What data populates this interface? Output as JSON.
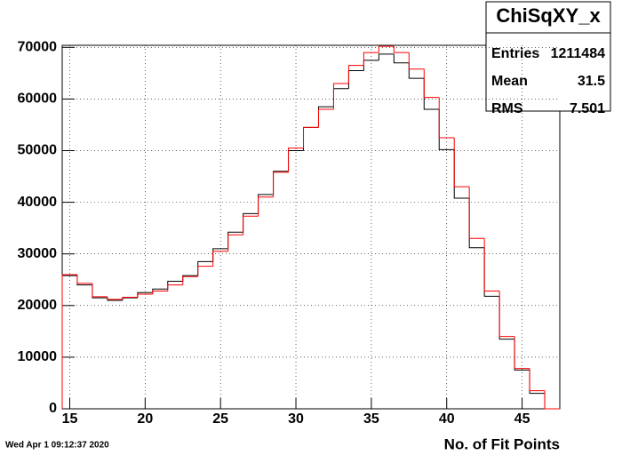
{
  "chart_data": {
    "type": "histogram",
    "title": "ChiSqXY_x",
    "stats": {
      "labels": [
        "Entries",
        "Mean",
        "RMS"
      ],
      "values": [
        "1211484",
        "31.5",
        "7.501"
      ]
    },
    "xlabel": "No. of Fit Points",
    "date": "Wed Apr  1 09:12:37 2020",
    "bins": [
      14.5,
      15.5,
      16.5,
      17.5,
      18.5,
      19.5,
      20.5,
      21.5,
      22.5,
      23.5,
      24.5,
      25.5,
      26.5,
      27.5,
      28.5,
      29.5,
      30.5,
      31.5,
      32.5,
      33.5,
      34.5,
      35.5,
      36.5,
      37.5,
      38.5,
      39.5,
      40.5,
      41.5,
      42.5,
      43.5,
      44.5,
      45.5,
      46.5,
      47.5
    ],
    "series": [
      {
        "color": "#000000",
        "values": [
          25800,
          24000,
          21500,
          21000,
          21500,
          22500,
          23200,
          24700,
          25800,
          28500,
          31000,
          34200,
          37800,
          41500,
          46000,
          50000,
          54500,
          58500,
          62000,
          65500,
          67500,
          68700,
          67000,
          64000,
          58000,
          50200,
          40800,
          31200,
          21800,
          13500,
          7500,
          3000,
          0
        ]
      },
      {
        "color": "#ff0000",
        "values": [
          26000,
          24300,
          21700,
          21200,
          21600,
          22200,
          22800,
          24000,
          25600,
          27600,
          30500,
          33700,
          37300,
          41000,
          45800,
          50500,
          54500,
          58000,
          63000,
          66500,
          69000,
          70200,
          69000,
          65800,
          60300,
          52500,
          43000,
          33000,
          22800,
          14000,
          7800,
          3500,
          0
        ]
      }
    ],
    "xlim": [
      14.5,
      47.5
    ],
    "xticks": [
      15,
      20,
      25,
      30,
      35,
      40,
      45
    ],
    "ylim": [
      0,
      70400
    ],
    "yticks": [
      0,
      10000,
      20000,
      30000,
      40000,
      50000,
      60000,
      70000
    ],
    "grid": true
  }
}
